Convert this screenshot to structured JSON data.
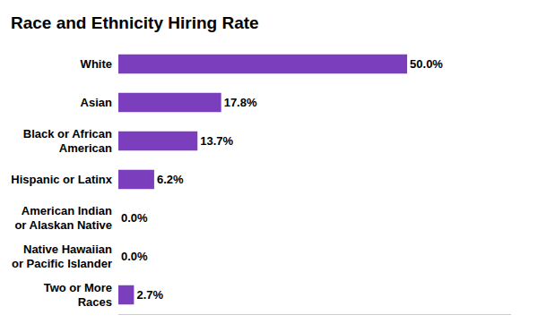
{
  "chart_data": {
    "type": "bar",
    "orientation": "horizontal",
    "title": "Race and Ethnicity Hiring Rate",
    "categories": [
      "Two or More\nRaces",
      "Native Hawaiian\nor Pacific Islander",
      "American Indian\nor Alaskan Native",
      "Hispanic or Latinx",
      "Black or African\nAmerican",
      "Asian",
      "White"
    ],
    "values": [
      2.7,
      0.0,
      0.0,
      6.2,
      13.7,
      17.8,
      50.0
    ],
    "value_labels": [
      "2.7%",
      "0.0%",
      "0.0%",
      "6.2%",
      "13.7%",
      "17.8%",
      "50.0%"
    ],
    "data_labels": true,
    "color": "#7B3FBE",
    "xlim": [
      0,
      68
    ],
    "tick_labels": "y",
    "grid": false
  }
}
